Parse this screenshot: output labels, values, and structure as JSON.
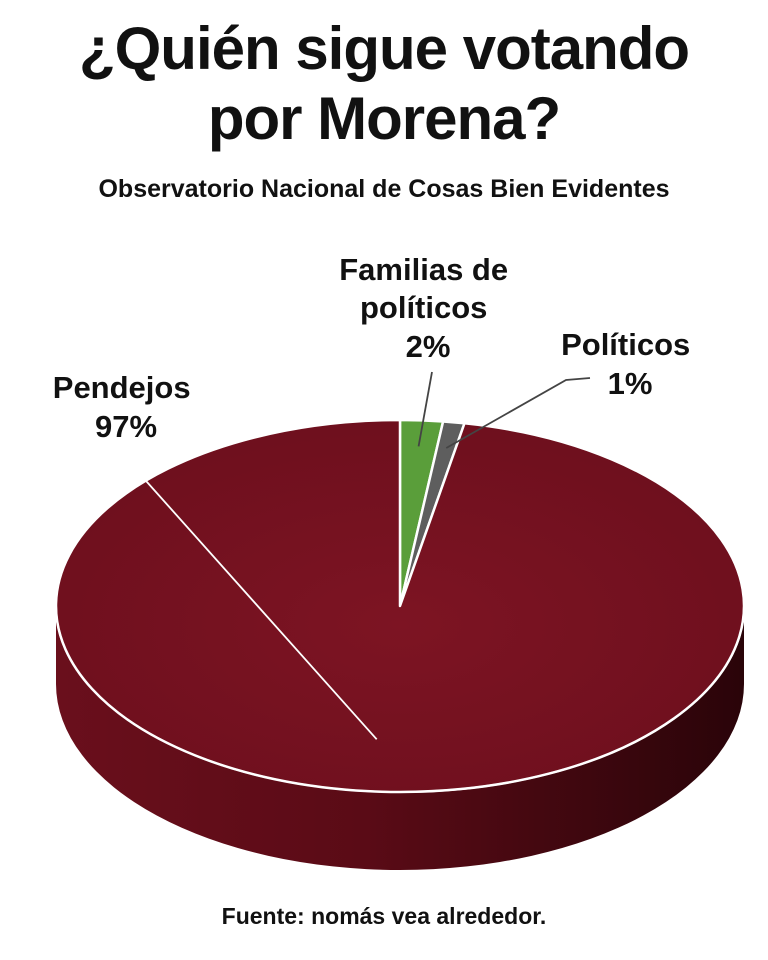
{
  "chart_data": {
    "type": "pie",
    "title": [
      "¿Quién sigue votando",
      "por Morena?"
    ],
    "subtitle": "Observatorio Nacional de Cosas Bien Evidentes",
    "source": "Fuente: nomás vea alrededor.",
    "slices": [
      {
        "name": [
          "Familias de",
          "políticos"
        ],
        "value": 2,
        "value_label": "2%",
        "color": "#5a9e3a"
      },
      {
        "name": [
          "Políticos"
        ],
        "value": 1,
        "value_label": "1%",
        "color": "#5e5e5e"
      },
      {
        "name": [
          "Pendejos"
        ],
        "value": 97,
        "value_label": "97%",
        "color": "#7a1221"
      }
    ],
    "style": "3d-pie",
    "legend": "none"
  }
}
